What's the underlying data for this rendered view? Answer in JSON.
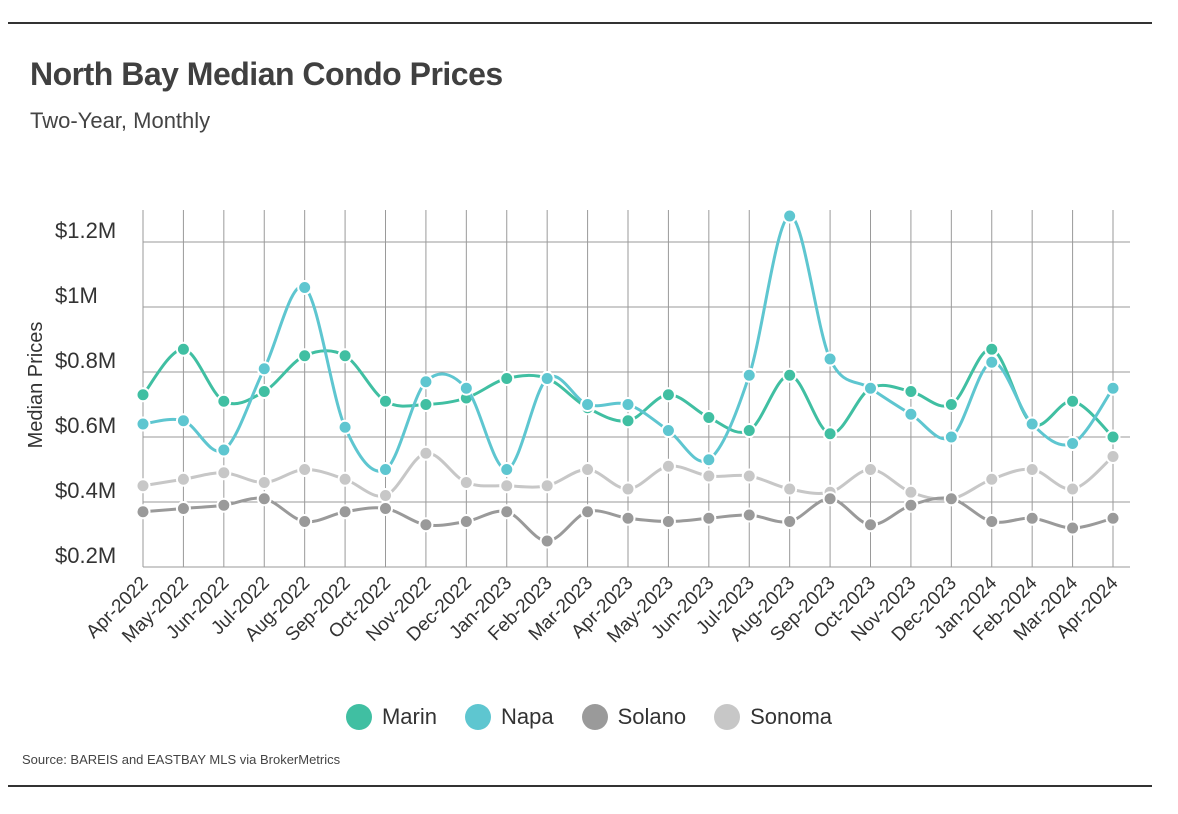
{
  "header": {
    "title": "North Bay Median Condo Prices",
    "subtitle": "Two-Year, Monthly"
  },
  "footer": {
    "source": "Source:  BAREIS and EASTBAY MLS via BrokerMetrics"
  },
  "chart_data": {
    "type": "line",
    "title": "North Bay Median Condo Prices",
    "subtitle": "Two-Year, Monthly",
    "xlabel": "",
    "ylabel": "Median Prices",
    "ylim": [
      0.2,
      1.3
    ],
    "yticks": [
      0.2,
      0.4,
      0.6,
      0.8,
      1.0,
      1.2
    ],
    "ytick_labels": [
      "$0.2M",
      "$0.4M",
      "$0.6M",
      "$0.8M",
      "$1M",
      "$1.2M"
    ],
    "grid": true,
    "legend_position": "bottom",
    "categories": [
      "Apr-2022",
      "May-2022",
      "Jun-2022",
      "Jul-2022",
      "Aug-2022",
      "Sep-2022",
      "Oct-2022",
      "Nov-2022",
      "Dec-2022",
      "Jan-2023",
      "Feb-2023",
      "Mar-2023",
      "Apr-2023",
      "May-2023",
      "Jun-2023",
      "Jul-2023",
      "Aug-2023",
      "Sep-2023",
      "Oct-2023",
      "Nov-2023",
      "Dec-2023",
      "Jan-2024",
      "Feb-2024",
      "Mar-2024",
      "Apr-2024"
    ],
    "series": [
      {
        "name": "Marin",
        "color": "#40bfa2",
        "values": [
          0.73,
          0.87,
          0.71,
          0.74,
          0.85,
          0.85,
          0.71,
          0.7,
          0.72,
          0.78,
          0.78,
          0.69,
          0.65,
          0.73,
          0.66,
          0.62,
          0.79,
          0.61,
          0.75,
          0.74,
          0.7,
          0.87,
          0.64,
          0.71,
          0.6
        ]
      },
      {
        "name": "Napa",
        "color": "#5ec6d0",
        "values": [
          0.64,
          0.65,
          0.56,
          0.81,
          1.06,
          0.63,
          0.5,
          0.77,
          0.75,
          0.5,
          0.78,
          0.7,
          0.7,
          0.62,
          0.53,
          0.79,
          1.28,
          0.84,
          0.75,
          0.67,
          0.6,
          0.83,
          0.64,
          0.58,
          0.75
        ]
      },
      {
        "name": "Solano",
        "color": "#9a9a9a",
        "values": [
          0.37,
          0.38,
          0.39,
          0.41,
          0.34,
          0.37,
          0.38,
          0.33,
          0.34,
          0.37,
          0.28,
          0.37,
          0.35,
          0.34,
          0.35,
          0.36,
          0.34,
          0.41,
          0.33,
          0.39,
          0.41,
          0.34,
          0.35,
          0.32,
          0.35
        ]
      },
      {
        "name": "Sonoma",
        "color": "#c7c7c7",
        "values": [
          0.45,
          0.47,
          0.49,
          0.46,
          0.5,
          0.47,
          0.42,
          0.55,
          0.46,
          0.45,
          0.45,
          0.5,
          0.44,
          0.51,
          0.48,
          0.48,
          0.44,
          0.43,
          0.5,
          0.43,
          0.41,
          0.47,
          0.5,
          0.44,
          0.54
        ]
      }
    ]
  }
}
